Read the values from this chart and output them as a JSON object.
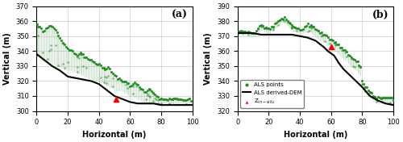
{
  "panel_a": {
    "label": "(a)",
    "xlim": [
      0,
      100
    ],
    "ylim": [
      300,
      370
    ],
    "yticks": [
      300,
      310,
      320,
      330,
      340,
      350,
      360,
      370
    ],
    "ylabel": "Vertical (m)",
    "xlabel": "Horizontal (m)",
    "dem_x": [
      0,
      5,
      10,
      15,
      20,
      25,
      30,
      35,
      40,
      45,
      50,
      55,
      60,
      65,
      70,
      75,
      80,
      85,
      90,
      95,
      100
    ],
    "dem_y": [
      338,
      334,
      330,
      327,
      323,
      322,
      321,
      320,
      318,
      314,
      310,
      308,
      306,
      305,
      305,
      305,
      304,
      304,
      304,
      304,
      304
    ],
    "cloud_x": [
      0.5,
      1,
      2,
      3,
      4,
      5,
      6,
      7,
      8,
      9,
      10,
      11,
      12,
      13,
      14,
      15,
      16,
      17,
      18,
      19,
      20,
      21,
      22,
      23,
      24,
      25,
      26,
      27,
      28,
      29,
      30,
      31,
      32,
      33,
      34,
      35,
      36,
      37,
      38,
      39,
      40,
      41,
      42,
      43,
      44,
      45,
      46,
      47,
      48,
      49,
      50,
      51,
      52,
      53,
      54,
      55,
      56,
      57,
      58,
      59,
      60,
      61,
      62,
      63,
      64,
      65,
      66,
      67,
      68,
      69,
      70,
      71,
      72,
      73,
      74,
      75,
      76,
      77,
      78,
      79,
      80,
      81,
      82,
      83,
      84,
      85,
      86,
      87,
      88,
      89,
      90,
      91,
      92,
      93,
      94,
      95,
      96,
      97,
      98,
      99,
      100
    ],
    "cloud_y_base": [
      337,
      337,
      336,
      335,
      334,
      333,
      333,
      333,
      332,
      332,
      332,
      331,
      331,
      330,
      330,
      330,
      329,
      329,
      328,
      328,
      328,
      327,
      327,
      326,
      326,
      326,
      325,
      325,
      325,
      324,
      324,
      323,
      323,
      322,
      322,
      322,
      321,
      321,
      320,
      320,
      319,
      319,
      319,
      318,
      318,
      317,
      317,
      316,
      316,
      315,
      314,
      314,
      314,
      314,
      313,
      313,
      312,
      312,
      311,
      311,
      310,
      310,
      310,
      309,
      309,
      308,
      308,
      307,
      307,
      306,
      306,
      305,
      305,
      305,
      305,
      305,
      305,
      305,
      305,
      305,
      305,
      305,
      305,
      305,
      305,
      305,
      305,
      305,
      305,
      305,
      304,
      304,
      304,
      304,
      304,
      304,
      304,
      304,
      304,
      304,
      304
    ],
    "cloud_y_top": [
      358,
      357,
      356,
      355,
      354,
      354,
      355,
      356,
      357,
      357,
      356,
      355,
      354,
      352,
      350,
      349,
      347,
      346,
      344,
      343,
      342,
      341,
      340,
      340,
      339,
      338,
      337,
      338,
      339,
      338,
      337,
      336,
      336,
      335,
      334,
      334,
      333,
      333,
      332,
      331,
      331,
      330,
      329,
      329,
      328,
      328,
      329,
      328,
      326,
      325,
      324,
      323,
      322,
      322,
      321,
      320,
      320,
      319,
      319,
      318,
      317,
      317,
      318,
      319,
      318,
      317,
      316,
      315,
      314,
      313,
      313,
      314,
      315,
      314,
      313,
      312,
      311,
      310,
      309,
      308,
      308,
      308,
      308,
      308,
      308,
      308,
      308,
      308,
      308,
      308,
      308,
      308,
      308,
      308,
      308,
      308,
      308,
      308,
      308,
      307
    ],
    "insitu_x": 51,
    "insitu_y": 308
  },
  "panel_b": {
    "label": "(b)",
    "xlim": [
      0,
      100
    ],
    "ylim": [
      320,
      390
    ],
    "yticks": [
      320,
      330,
      340,
      350,
      360,
      370,
      380,
      390
    ],
    "ylabel": "Vertical (m)",
    "xlabel": "Horizontal (m)",
    "dem_x": [
      0,
      5,
      10,
      15,
      20,
      25,
      30,
      35,
      40,
      45,
      50,
      55,
      58,
      62,
      65,
      68,
      72,
      76,
      80,
      85,
      90,
      95,
      100
    ],
    "dem_y": [
      372,
      372,
      372,
      371,
      371,
      371,
      371,
      371,
      370,
      369,
      367,
      363,
      360,
      357,
      352,
      348,
      344,
      340,
      336,
      330,
      327,
      325,
      324
    ],
    "cloud_x": [
      0.5,
      1,
      2,
      3,
      4,
      5,
      6,
      7,
      8,
      9,
      10,
      11,
      12,
      13,
      14,
      15,
      16,
      17,
      18,
      19,
      20,
      21,
      22,
      23,
      24,
      25,
      26,
      27,
      28,
      29,
      30,
      31,
      32,
      33,
      34,
      35,
      36,
      37,
      38,
      39,
      40,
      41,
      42,
      43,
      44,
      45,
      46,
      47,
      48,
      49,
      50,
      51,
      52,
      53,
      54,
      55,
      56,
      57,
      58,
      59,
      60,
      61,
      62,
      63,
      64,
      65,
      66,
      67,
      68,
      69,
      70,
      71,
      72,
      73,
      74,
      75,
      76,
      77,
      78,
      79,
      80,
      81,
      82,
      83,
      84,
      85,
      86,
      87,
      88,
      89,
      90,
      91,
      92,
      93,
      94,
      95,
      96,
      97,
      98,
      99,
      100
    ],
    "cloud_y_base": [
      371,
      372,
      372,
      371,
      371,
      371,
      371,
      371,
      370,
      370,
      370,
      370,
      371,
      372,
      373,
      374,
      374,
      373,
      373,
      372,
      372,
      372,
      373,
      374,
      375,
      376,
      377,
      378,
      379,
      379,
      379,
      378,
      377,
      376,
      375,
      374,
      373,
      373,
      372,
      372,
      371,
      371,
      372,
      372,
      373,
      373,
      373,
      373,
      372,
      371,
      370,
      369,
      368,
      367,
      367,
      366,
      366,
      365,
      364,
      363,
      362,
      361,
      360,
      360,
      359,
      358,
      357,
      356,
      355,
      354,
      353,
      352,
      351,
      350,
      349,
      348,
      347,
      346,
      345,
      344,
      336,
      334,
      332,
      331,
      330,
      329,
      328,
      327,
      326,
      325,
      325,
      325,
      325,
      325,
      325,
      325,
      325,
      325,
      325,
      325,
      325
    ],
    "cloud_y_top": [
      373,
      374,
      374,
      373,
      373,
      373,
      373,
      373,
      372,
      372,
      372,
      372,
      374,
      375,
      376,
      377,
      377,
      376,
      376,
      375,
      375,
      375,
      376,
      377,
      378,
      379,
      380,
      381,
      382,
      382,
      382,
      381,
      380,
      379,
      378,
      377,
      376,
      376,
      375,
      375,
      374,
      374,
      375,
      376,
      377,
      378,
      378,
      378,
      377,
      376,
      375,
      374,
      373,
      372,
      372,
      371,
      371,
      370,
      369,
      368,
      368,
      367,
      366,
      366,
      365,
      364,
      363,
      362,
      361,
      360,
      359,
      358,
      357,
      356,
      355,
      354,
      353,
      352,
      351,
      350,
      340,
      338,
      336,
      335,
      334,
      333,
      332,
      331,
      330,
      329,
      329,
      329,
      329,
      329,
      329,
      329,
      329,
      329,
      329,
      329,
      328
    ],
    "insitu_x": 60,
    "insitu_y": 363
  },
  "point_color": "#228B22",
  "line_color": "black",
  "insitu_color": "red",
  "grid_color": "#cccccc",
  "bg_color": "white",
  "legend_labels": [
    "ALS points",
    "ALS derived-DEM",
    "Z$_{in-situ}$"
  ],
  "point_size": 4,
  "line_width": 1.5
}
